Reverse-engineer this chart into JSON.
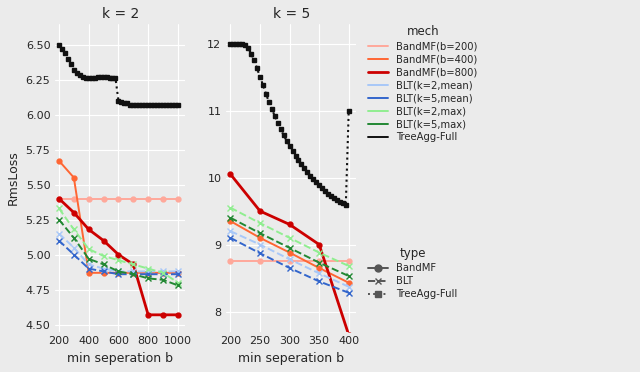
{
  "k2": {
    "title": "k = 2",
    "xlabel": "min seperation b",
    "ylabel": "RmsLoss",
    "xlim": [
      175,
      1050
    ],
    "ylim": [
      4.45,
      6.65
    ],
    "xticks": [
      200,
      400,
      600,
      800,
      1000
    ],
    "yticks": [
      4.5,
      4.75,
      5.0,
      5.25,
      5.5,
      5.75,
      6.0,
      6.25,
      6.5
    ],
    "BandMF_b200_x": [
      200,
      300,
      400,
      500,
      600,
      700,
      800,
      900,
      1000
    ],
    "BandMF_b200_y": [
      5.4,
      5.4,
      5.4,
      5.4,
      5.4,
      5.4,
      5.4,
      5.4,
      5.4
    ],
    "BandMF_b400_x": [
      200,
      300,
      400,
      500,
      600,
      700,
      800,
      900,
      1000
    ],
    "BandMF_b400_y": [
      5.67,
      5.55,
      4.87,
      4.87,
      4.87,
      4.87,
      4.87,
      4.87,
      4.87
    ],
    "BandMF_b800_x": [
      200,
      300,
      400,
      500,
      600,
      700,
      800,
      900,
      1000
    ],
    "BandMF_b800_y": [
      5.4,
      5.3,
      5.18,
      5.1,
      5.0,
      4.93,
      4.57,
      4.57,
      4.57
    ],
    "BLT_k2_mean_x": [
      200,
      300,
      400,
      500,
      600,
      700,
      800,
      900,
      1000
    ],
    "BLT_k2_mean_y": [
      5.15,
      5.05,
      4.93,
      4.9,
      4.88,
      4.88,
      4.88,
      4.88,
      4.88
    ],
    "BLT_k5_mean_x": [
      200,
      300,
      400,
      500,
      600,
      700,
      800,
      900,
      1000
    ],
    "BLT_k5_mean_y": [
      5.1,
      5.0,
      4.9,
      4.88,
      4.86,
      4.86,
      4.86,
      4.86,
      4.86
    ],
    "BLT_k2_max_x": [
      200,
      300,
      400,
      500,
      600,
      700,
      800,
      900,
      1000
    ],
    "BLT_k2_max_y": [
      5.33,
      5.18,
      5.04,
      4.99,
      4.96,
      4.93,
      4.9,
      4.87,
      4.8
    ],
    "BLT_k5_max_x": [
      200,
      300,
      400,
      500,
      600,
      700,
      800,
      900,
      1000
    ],
    "BLT_k5_max_y": [
      5.25,
      5.12,
      4.97,
      4.93,
      4.88,
      4.86,
      4.83,
      4.82,
      4.78
    ],
    "TreeAgg_x": [
      200,
      220,
      240,
      260,
      280,
      300,
      320,
      340,
      360,
      380,
      400,
      420,
      440,
      460,
      480,
      500,
      520,
      540,
      560,
      580,
      600,
      620,
      640,
      660,
      680,
      700,
      720,
      740,
      760,
      780,
      800,
      820,
      840,
      860,
      880,
      900,
      920,
      940,
      960,
      980,
      1000
    ],
    "TreeAgg_y": [
      6.5,
      6.47,
      6.44,
      6.4,
      6.36,
      6.32,
      6.3,
      6.28,
      6.27,
      6.26,
      6.26,
      6.26,
      6.26,
      6.27,
      6.27,
      6.27,
      6.27,
      6.26,
      6.26,
      6.26,
      6.1,
      6.09,
      6.08,
      6.08,
      6.07,
      6.07,
      6.07,
      6.07,
      6.07,
      6.07,
      6.07,
      6.07,
      6.07,
      6.07,
      6.07,
      6.07,
      6.07,
      6.07,
      6.07,
      6.07,
      6.07
    ]
  },
  "k5": {
    "title": "k = 5",
    "xlabel": "min seperation b",
    "xlim": [
      193,
      413
    ],
    "ylim": [
      7.7,
      12.3
    ],
    "xticks": [
      200,
      250,
      300,
      350,
      400
    ],
    "yticks": [
      8,
      9,
      10,
      11,
      12
    ],
    "BandMF_b200_x": [
      200,
      250,
      300,
      350,
      400
    ],
    "BandMF_b200_y": [
      8.75,
      8.75,
      8.75,
      8.75,
      8.75
    ],
    "BandMF_b400_x": [
      200,
      250,
      300,
      350,
      400
    ],
    "BandMF_b400_y": [
      9.35,
      9.1,
      8.88,
      8.65,
      8.43
    ],
    "BandMF_b800_x": [
      200,
      250,
      300,
      350,
      400
    ],
    "BandMF_b800_y": [
      10.05,
      9.5,
      9.3,
      9.0,
      7.65
    ],
    "BLT_k2_mean_x": [
      200,
      250,
      300,
      350,
      400
    ],
    "BLT_k2_mean_y": [
      9.2,
      9.0,
      8.78,
      8.57,
      8.37
    ],
    "BLT_k5_mean_x": [
      200,
      250,
      300,
      350,
      400
    ],
    "BLT_k5_mean_y": [
      9.1,
      8.87,
      8.65,
      8.45,
      8.28
    ],
    "BLT_k2_max_x": [
      200,
      250,
      300,
      350,
      400
    ],
    "BLT_k2_max_y": [
      9.55,
      9.32,
      9.1,
      8.88,
      8.68
    ],
    "BLT_k5_max_x": [
      200,
      250,
      300,
      350,
      400
    ],
    "BLT_k5_max_y": [
      9.4,
      9.17,
      8.95,
      8.73,
      8.53
    ],
    "TreeAgg_x": [
      200,
      205,
      210,
      215,
      220,
      225,
      230,
      235,
      240,
      245,
      250,
      255,
      260,
      265,
      270,
      275,
      280,
      285,
      290,
      295,
      300,
      305,
      310,
      315,
      320,
      325,
      330,
      335,
      340,
      345,
      350,
      355,
      360,
      365,
      370,
      375,
      380,
      385,
      390,
      395,
      400
    ],
    "TreeAgg_y": [
      12.0,
      12.0,
      12.0,
      12.0,
      12.0,
      11.98,
      11.93,
      11.85,
      11.75,
      11.63,
      11.5,
      11.38,
      11.25,
      11.13,
      11.02,
      10.92,
      10.82,
      10.72,
      10.63,
      10.55,
      10.47,
      10.39,
      10.32,
      10.26,
      10.2,
      10.14,
      10.08,
      10.03,
      9.98,
      9.93,
      9.89,
      9.84,
      9.8,
      9.76,
      9.73,
      9.7,
      9.67,
      9.64,
      9.62,
      9.59,
      11.0
    ]
  },
  "colors": {
    "BandMF_b200": "#ffa89a",
    "BandMF_b400": "#ff6633",
    "BandMF_b800": "#cc0000",
    "BLT_k2_mean": "#a8c8f8",
    "BLT_k5_mean": "#3366cc",
    "BLT_k2_max": "#90ee90",
    "BLT_k5_max": "#228833",
    "TreeAgg": "#111111"
  },
  "bg_color": "#ebebeb"
}
